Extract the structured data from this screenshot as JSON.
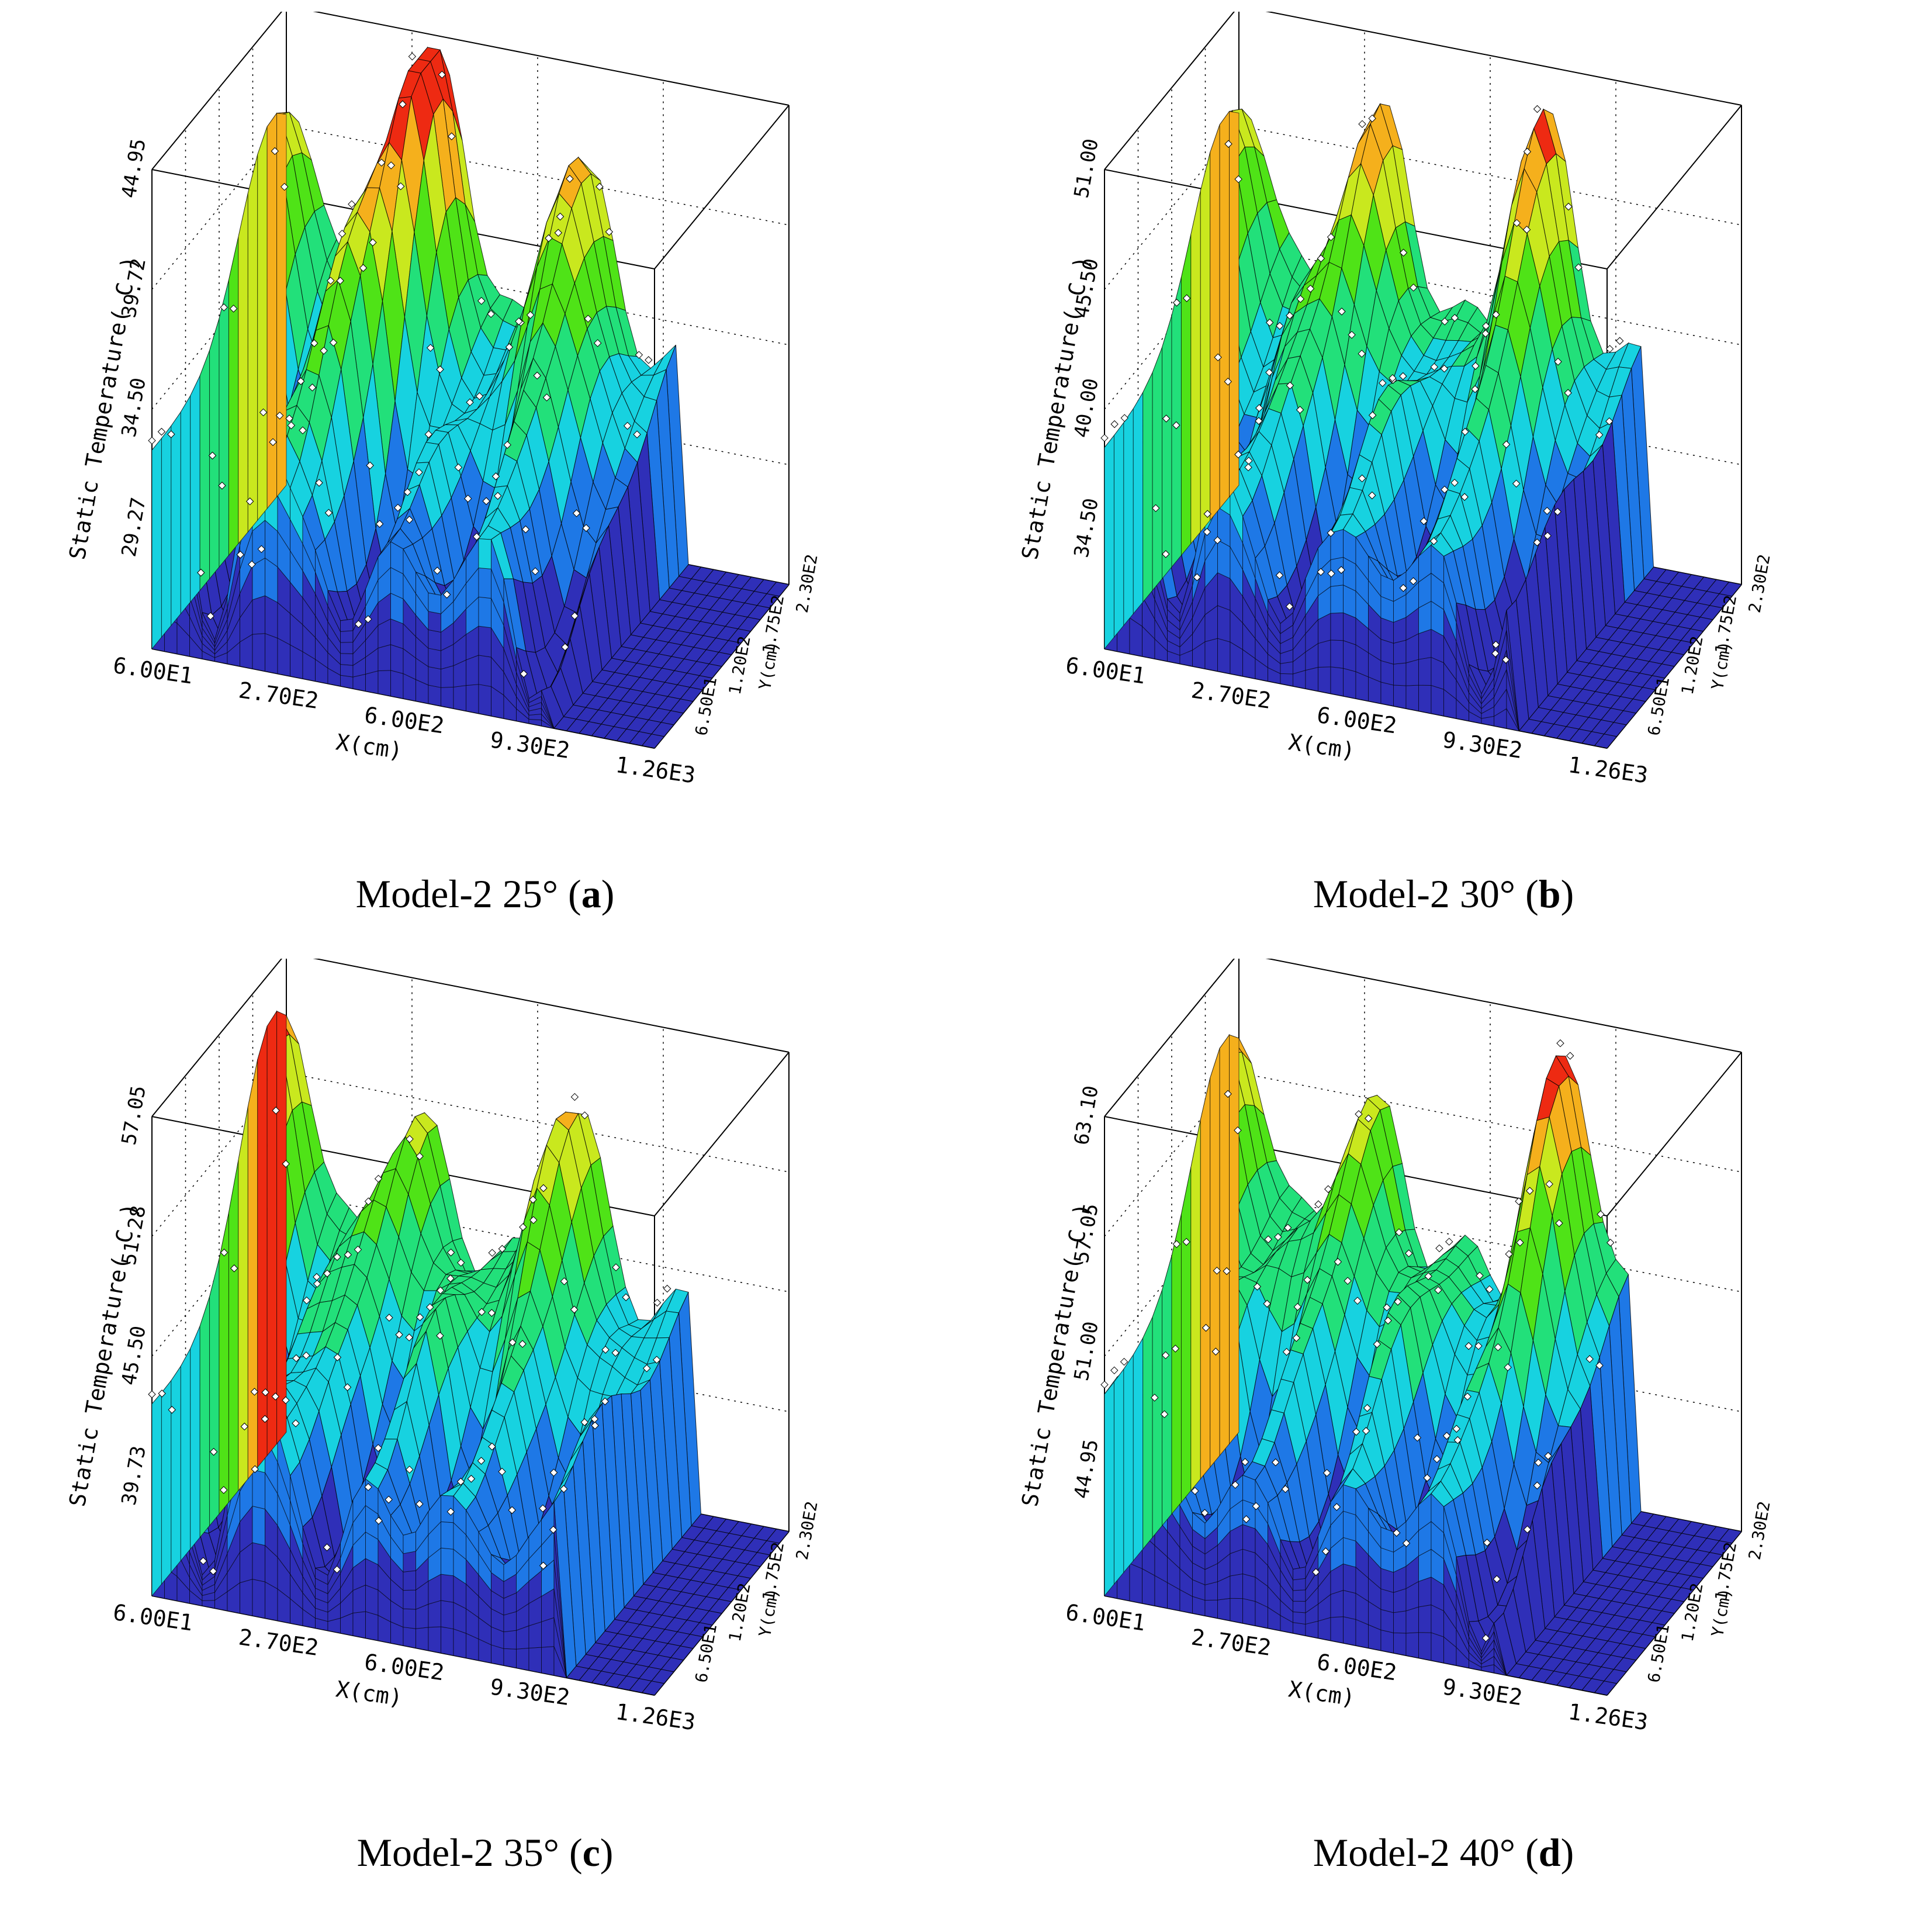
{
  "chart_data": [
    {
      "id": "a",
      "type": "surface3d",
      "caption_prefix": "Model-2 25° (",
      "caption_letter": "a",
      "caption_suffix": ")",
      "zlabel": "Static Temperature( C )",
      "xlabel": "X(cm)",
      "ylabel": "Y(cm)",
      "z_ticks": [
        "29.27",
        "34.50",
        "39.72",
        "44.95"
      ],
      "z_range": [
        24.0,
        44.95
      ],
      "x_ticks": [
        "6.00E1",
        "2.70E2",
        "6.00E2",
        "9.30E2",
        "1.26E3"
      ],
      "y_ticks": [
        "6.50E1",
        "1.20E2",
        "1.75E2",
        "2.30E2"
      ],
      "peaks": [
        {
          "x": 0.02,
          "y": 0.9,
          "z": 42.5
        },
        {
          "x": 0.25,
          "y": 0.5,
          "z": 39.0
        },
        {
          "x": 0.32,
          "y": 0.8,
          "z": 49.0
        },
        {
          "x": 0.6,
          "y": 0.8,
          "z": 44.0
        },
        {
          "x": 0.45,
          "y": 0.3,
          "z": 33.5
        }
      ],
      "valleys": [
        {
          "x": 0.12,
          "y": 0.2,
          "z": 24.0
        },
        {
          "x": 0.38,
          "y": 0.15,
          "z": 24.5
        },
        {
          "x": 0.55,
          "y": 0.2,
          "z": 26.5
        },
        {
          "x": 0.75,
          "y": 0.15,
          "z": 24.0
        }
      ],
      "floor_start": 0.78
    },
    {
      "id": "b",
      "type": "surface3d",
      "caption_prefix": "Model-2 30° (",
      "caption_letter": "b",
      "caption_suffix": ")",
      "zlabel": "Static Temperature( C )",
      "xlabel": "X(cm)",
      "ylabel": "Y(cm)",
      "z_ticks": [
        "34.50",
        "40.00",
        "45.50",
        "51.00"
      ],
      "z_range": [
        29.0,
        51.0
      ],
      "x_ticks": [
        "6.00E1",
        "2.70E2",
        "6.00E2",
        "9.30E2",
        "1.26E3"
      ],
      "y_ticks": [
        "6.50E1",
        "1.20E2",
        "1.75E2",
        "2.30E2"
      ],
      "peaks": [
        {
          "x": 0.02,
          "y": 0.9,
          "z": 48.5
        },
        {
          "x": 0.3,
          "y": 0.85,
          "z": 50.0
        },
        {
          "x": 0.62,
          "y": 0.85,
          "z": 51.5
        },
        {
          "x": 0.18,
          "y": 0.5,
          "z": 43.5
        },
        {
          "x": 0.48,
          "y": 0.5,
          "z": 41.0
        }
      ],
      "valleys": [
        {
          "x": 0.15,
          "y": 0.2,
          "z": 30.0
        },
        {
          "x": 0.36,
          "y": 0.15,
          "z": 29.5
        },
        {
          "x": 0.55,
          "y": 0.25,
          "z": 32.0
        },
        {
          "x": 0.74,
          "y": 0.15,
          "z": 29.0
        }
      ],
      "floor_start": 0.82
    },
    {
      "id": "c",
      "type": "surface3d",
      "caption_prefix": "Model-2 35° (",
      "caption_letter": "c",
      "caption_suffix": ")",
      "zlabel": "Static Temperature( C )",
      "xlabel": "X(cm)",
      "ylabel": "Y(cm)",
      "z_ticks": [
        "39.73",
        "45.50",
        "51.28",
        "57.05"
      ],
      "z_range": [
        34.0,
        57.05
      ],
      "x_ticks": [
        "6.00E1",
        "2.70E2",
        "6.00E2",
        "9.30E2",
        "1.26E3"
      ],
      "y_ticks": [
        "6.50E1",
        "1.20E2",
        "1.75E2",
        "2.30E2"
      ],
      "peaks": [
        {
          "x": 0.01,
          "y": 0.9,
          "z": 56.5
        },
        {
          "x": 0.28,
          "y": 0.85,
          "z": 52.0
        },
        {
          "x": 0.58,
          "y": 0.85,
          "z": 55.0
        },
        {
          "x": 0.45,
          "y": 0.5,
          "z": 49.0
        },
        {
          "x": 0.15,
          "y": 0.5,
          "z": 47.0
        }
      ],
      "valleys": [
        {
          "x": 0.1,
          "y": 0.2,
          "z": 34.0
        },
        {
          "x": 0.35,
          "y": 0.15,
          "z": 34.5
        },
        {
          "x": 0.52,
          "y": 0.2,
          "z": 37.0
        },
        {
          "x": 0.7,
          "y": 0.2,
          "z": 36.0
        }
      ],
      "floor_start": 0.82
    },
    {
      "id": "d",
      "type": "surface3d",
      "caption_prefix": "Model-2 40° (",
      "caption_letter": "d",
      "caption_suffix": ")",
      "zlabel": "Static Temperature( C )",
      "xlabel": "X(cm)",
      "ylabel": "Y(cm)",
      "z_ticks": [
        "44.95",
        "51.00",
        "57.05",
        "63.10"
      ],
      "z_range": [
        38.5,
        63.1
      ],
      "x_ticks": [
        "6.00E1",
        "2.70E2",
        "6.00E2",
        "9.30E2",
        "1.26E3"
      ],
      "y_ticks": [
        "6.50E1",
        "1.20E2",
        "1.75E2",
        "2.30E2"
      ],
      "peaks": [
        {
          "x": 0.01,
          "y": 0.9,
          "z": 61.0
        },
        {
          "x": 0.28,
          "y": 0.85,
          "z": 59.0
        },
        {
          "x": 0.66,
          "y": 0.9,
          "z": 63.5
        },
        {
          "x": 0.45,
          "y": 0.55,
          "z": 55.0
        },
        {
          "x": 0.18,
          "y": 0.55,
          "z": 56.0
        }
      ],
      "valleys": [
        {
          "x": 0.2,
          "y": 0.2,
          "z": 40.0
        },
        {
          "x": 0.38,
          "y": 0.15,
          "z": 39.0
        },
        {
          "x": 0.55,
          "y": 0.25,
          "z": 41.5
        },
        {
          "x": 0.74,
          "y": 0.1,
          "z": 38.5
        }
      ],
      "floor_start": 0.8
    }
  ]
}
